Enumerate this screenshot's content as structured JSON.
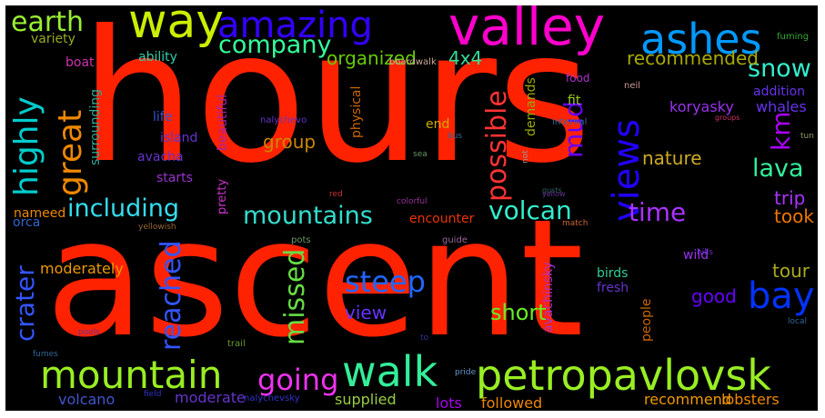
{
  "words": [
    {
      "text": "hours",
      "color": "#ff2200"
    },
    {
      "text": "ascent",
      "color": "#ff2200"
    },
    {
      "text": "valley",
      "color": "#ff00cc"
    },
    {
      "text": "way",
      "color": "#ccee00"
    },
    {
      "text": "amazing",
      "color": "#3300ff"
    },
    {
      "text": "ashes",
      "color": "#0099ff"
    },
    {
      "text": "earth",
      "color": "#99ee33"
    },
    {
      "text": "company",
      "color": "#33ff99"
    },
    {
      "text": "snow",
      "color": "#33eecc"
    },
    {
      "text": "highly",
      "color": "#00cccc"
    },
    {
      "text": "great",
      "color": "#ee8800"
    },
    {
      "text": "organized",
      "color": "#66cc00"
    },
    {
      "text": "4x4",
      "color": "#33dd99"
    },
    {
      "text": "recommended",
      "color": "#aaaa00"
    },
    {
      "text": "possible",
      "color": "#ff3333"
    },
    {
      "text": "views",
      "color": "#2200ff"
    },
    {
      "text": "mud",
      "color": "#6600ff"
    },
    {
      "text": "km",
      "color": "#aa00ff"
    },
    {
      "text": "lava",
      "color": "#33ee99"
    },
    {
      "text": "including",
      "color": "#33ddee"
    },
    {
      "text": "mountains",
      "color": "#33ddcc"
    },
    {
      "text": "volcan",
      "color": "#33eecc"
    },
    {
      "text": "time",
      "color": "#aa33ff"
    },
    {
      "text": "group",
      "color": "#cc8800"
    },
    {
      "text": "nature",
      "color": "#ccaa22"
    },
    {
      "text": "trip",
      "color": "#aa33ff"
    },
    {
      "text": "took",
      "color": "#ee7700"
    },
    {
      "text": "crater",
      "color": "#3355ff"
    },
    {
      "text": "reached",
      "color": "#3355ff"
    },
    {
      "text": "missed",
      "color": "#66dd44"
    },
    {
      "text": "steep",
      "color": "#2266ff"
    },
    {
      "text": "bay",
      "color": "#0033ff"
    },
    {
      "text": "tour",
      "color": "#aaaa22"
    },
    {
      "text": "good",
      "color": "#6600ff"
    },
    {
      "text": "short",
      "color": "#66ee22"
    },
    {
      "text": "mountain",
      "color": "#99ee22"
    },
    {
      "text": "going",
      "color": "#ee33ee"
    },
    {
      "text": "walk",
      "color": "#33ee99"
    },
    {
      "text": "petropavlovsk",
      "color": "#99ee22"
    },
    {
      "text": "view",
      "color": "#6633ff"
    },
    {
      "text": "moderately",
      "color": "#ee9900"
    },
    {
      "text": "lobsters",
      "color": "#ee8800"
    },
    {
      "text": "recommend",
      "color": "#ee9900"
    },
    {
      "text": "followed",
      "color": "#ee8800"
    },
    {
      "text": "supplied",
      "color": "#99cc44"
    },
    {
      "text": "lots",
      "color": "#aa00ee"
    },
    {
      "text": "moderate",
      "color": "#6633cc"
    },
    {
      "text": "volcano",
      "color": "#4455cc"
    },
    {
      "text": "koryasky",
      "color": "#9933ee"
    },
    {
      "text": "whales",
      "color": "#6633ee"
    },
    {
      "text": "addition",
      "color": "#6633ee"
    },
    {
      "text": "island",
      "color": "#6633cc"
    },
    {
      "text": "avacha",
      "color": "#6633cc"
    },
    {
      "text": "starts",
      "color": "#9933cc"
    },
    {
      "text": "life",
      "color": "#3355cc"
    },
    {
      "text": "surrounding",
      "color": "#33aa99"
    },
    {
      "text": "variety",
      "color": "#99aa22"
    },
    {
      "text": "boat",
      "color": "#cc33aa"
    },
    {
      "text": "ability",
      "color": "#33ccaa"
    },
    {
      "text": "nameed",
      "color": "#ee8800"
    },
    {
      "text": "orca",
      "color": "#3366cc"
    },
    {
      "text": "birds",
      "color": "#33cc99"
    },
    {
      "text": "fresh",
      "color": "#6633cc"
    },
    {
      "text": "wild",
      "color": "#9933ee"
    },
    {
      "text": "encounter",
      "color": "#ee3300"
    },
    {
      "text": "beautiful",
      "color": "#aa22aa"
    },
    {
      "text": "physical",
      "color": "#cc6600"
    },
    {
      "text": "demands",
      "color": "#99aa00"
    },
    {
      "text": "end",
      "color": "#ccaa00"
    },
    {
      "text": "fit",
      "color": "#99cc22"
    },
    {
      "text": "food",
      "color": "#aa33cc"
    },
    {
      "text": "fuming",
      "color": "#33aa33"
    },
    {
      "text": "avachinsky",
      "color": "#aa33cc"
    },
    {
      "text": "people",
      "color": "#cc6600"
    },
    {
      "text": "pretty",
      "color": "#cc33cc"
    },
    {
      "text": "nalychevo",
      "color": "#6633cc"
    },
    {
      "text": "boardwalk",
      "color": "#ccaa99"
    },
    {
      "text": "internal",
      "color": "#336699"
    },
    {
      "text": "not",
      "color": "#999999"
    },
    {
      "text": "neil",
      "color": "#cc9999"
    },
    {
      "text": "guide",
      "color": "#996699"
    },
    {
      "text": "match",
      "color": "#cc6633"
    },
    {
      "text": "pots",
      "color": "#669966"
    },
    {
      "text": "red",
      "color": "#cc3333"
    },
    {
      "text": "trail",
      "color": "#669933"
    },
    {
      "text": "fumes",
      "color": "#336699"
    },
    {
      "text": "field",
      "color": "#3333cc"
    },
    {
      "text": "pride",
      "color": "#6699cc"
    },
    {
      "text": "local",
      "color": "#336699"
    },
    {
      "text": "hills",
      "color": "#6633cc"
    },
    {
      "text": "yellowish",
      "color": "#996633"
    },
    {
      "text": "colorful",
      "color": "#993399"
    },
    {
      "text": "groups",
      "color": "#cc3366"
    },
    {
      "text": "gusts",
      "color": "#336666"
    },
    {
      "text": "tun",
      "color": "#999966"
    },
    {
      "text": "pools",
      "color": "#663399"
    },
    {
      "text": "sea",
      "color": "#669966"
    },
    {
      "text": "bus",
      "color": "#336699"
    },
    {
      "text": "nalychevsky",
      "color": "#3333cc"
    },
    {
      "text": "yellow",
      "color": "#663399"
    },
    {
      "text": "to",
      "color": "#333399"
    }
  ]
}
